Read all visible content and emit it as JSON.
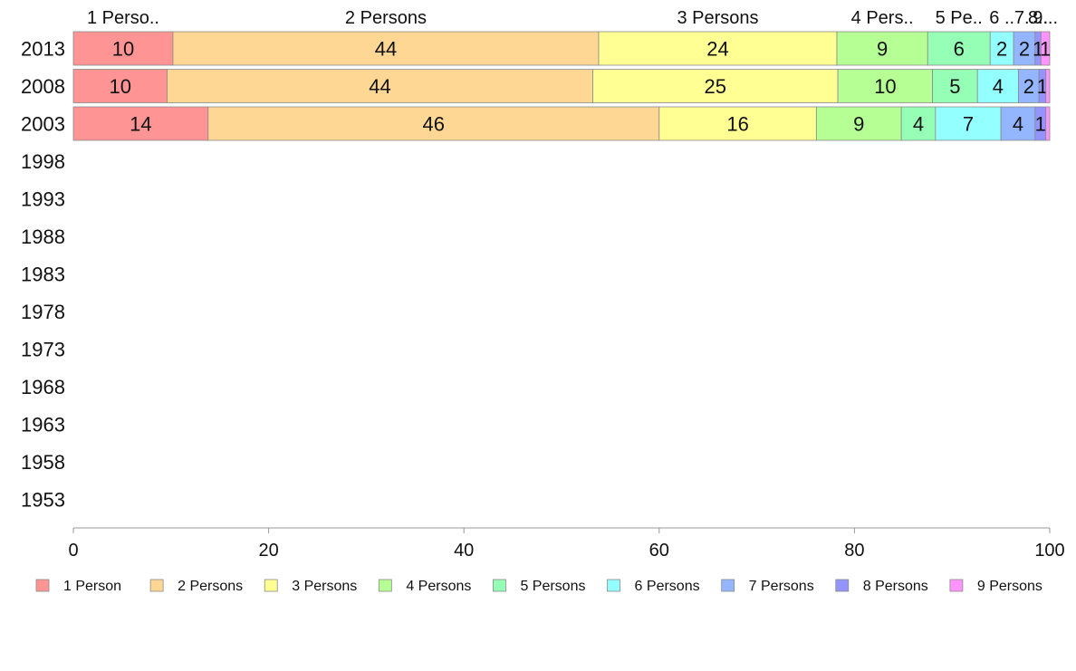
{
  "chart_data": {
    "type": "bar",
    "orientation": "horizontal",
    "stacked": true,
    "title": "",
    "xlabel": "",
    "ylabel": "",
    "xlim": [
      0,
      100
    ],
    "x_ticks": [
      "0",
      "20",
      "40",
      "60",
      "80",
      "100"
    ],
    "categories": [
      "2013",
      "2008",
      "2003",
      "1998",
      "1993",
      "1988",
      "1983",
      "1978",
      "1973",
      "1968",
      "1963",
      "1958",
      "1953"
    ],
    "series": [
      {
        "name": "1 Person",
        "color": "#ff9494",
        "values": [
          10.2,
          9.6,
          13.8,
          null,
          null,
          null,
          null,
          null,
          null,
          null,
          null,
          null,
          null
        ]
      },
      {
        "name": "2 Persons",
        "color": "#ffd794",
        "values": [
          43.6,
          43.6,
          46.2,
          null,
          null,
          null,
          null,
          null,
          null,
          null,
          null,
          null,
          null
        ]
      },
      {
        "name": "3 Persons",
        "color": "#ffff94",
        "values": [
          24.4,
          25.1,
          16.1,
          null,
          null,
          null,
          null,
          null,
          null,
          null,
          null,
          null,
          null
        ]
      },
      {
        "name": "4 Persons",
        "color": "#b5ff94",
        "values": [
          9.3,
          9.7,
          8.7,
          null,
          null,
          null,
          null,
          null,
          null,
          null,
          null,
          null,
          null
        ]
      },
      {
        "name": "5 Persons",
        "color": "#94ffb5",
        "values": [
          6.4,
          4.6,
          3.5,
          null,
          null,
          null,
          null,
          null,
          null,
          null,
          null,
          null,
          null
        ]
      },
      {
        "name": "6 Persons",
        "color": "#94ffff",
        "values": [
          2.4,
          4.2,
          6.7,
          null,
          null,
          null,
          null,
          null,
          null,
          null,
          null,
          null,
          null
        ]
      },
      {
        "name": "7 Persons",
        "color": "#94b5ff",
        "values": [
          2.2,
          2.1,
          3.5,
          null,
          null,
          null,
          null,
          null,
          null,
          null,
          null,
          null,
          null
        ]
      },
      {
        "name": "8 Persons",
        "color": "#9494ff",
        "values": [
          0.6,
          0.7,
          1.1,
          null,
          null,
          null,
          null,
          null,
          null,
          null,
          null,
          null,
          null
        ]
      },
      {
        "name": "9 Persons",
        "color": "#ff94ff",
        "values": [
          0.9,
          0.4,
          0.4,
          null,
          null,
          null,
          null,
          null,
          null,
          null,
          null,
          null,
          null
        ]
      }
    ],
    "segment_labels": [
      [
        "10",
        "44",
        "24",
        "9",
        "6",
        "2",
        "2",
        "1",
        "1"
      ],
      [
        "10",
        "44",
        "25",
        "10",
        "5",
        "4",
        "2",
        "1",
        ""
      ],
      [
        "14",
        "46",
        "16",
        "9",
        "4",
        "7",
        "4",
        "1",
        ""
      ]
    ],
    "top_labels": [
      "1 Perso..",
      "2 Persons",
      "3 Persons",
      "4 Pers..",
      "5 Pe..",
      "6 ..",
      "7..",
      "8..",
      "9..."
    ],
    "legend_position": "bottom",
    "grid": false
  }
}
